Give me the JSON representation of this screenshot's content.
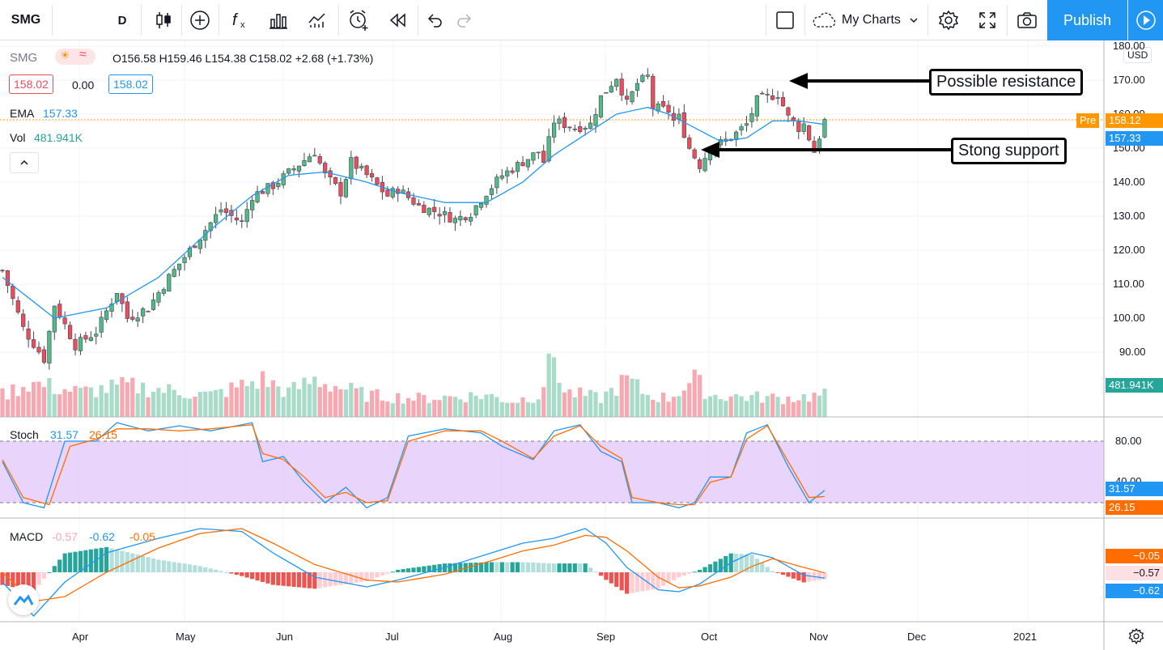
{
  "toolbar": {
    "symbol": "SMG",
    "interval": "D",
    "my_charts": "My Charts",
    "publish": "Publish"
  },
  "legend": {
    "symbol": "SMG",
    "ohlc": "O156.58 H159.46 L154.38 C158.02 +2.68 (+1.73%)",
    "bid": "158.02",
    "spread": "0.00",
    "ask": "158.02",
    "ema_label": "EMA",
    "ema_value": "157.33",
    "vol_label": "Vol",
    "vol_value": "481.941K"
  },
  "annotations": {
    "resistance": "Possible resistance",
    "support": "Stong support"
  },
  "price_axis": {
    "currency": "USD",
    "ticks": [
      "180.00",
      "170.00",
      "160.00",
      "150.00",
      "140.00",
      "130.00",
      "120.00",
      "110.00",
      "100.00",
      "90.00"
    ],
    "pre_label": "Pre",
    "pre_value": "158.12",
    "ema_tag": "157.33",
    "vol_tag": "481.941K"
  },
  "stoch": {
    "label": "Stoch",
    "k": "31.57",
    "d": "26.15",
    "ticks": [
      "80.00",
      "40.00"
    ],
    "k_tag": "31.57",
    "d_tag": "26.15"
  },
  "macd": {
    "label": "MACD",
    "hist": "-0.57",
    "macd": "-0.62",
    "signal": "-0.05",
    "tag_signal": "−0.05",
    "tag_hist": "−0.57",
    "tag_macd": "−0.62"
  },
  "time_axis": [
    "Apr",
    "May",
    "Jun",
    "Jul",
    "Aug",
    "Sep",
    "Oct",
    "Nov",
    "Dec",
    "2021"
  ],
  "colors": {
    "up": "#53b987",
    "down": "#eb4d5c",
    "ema": "#2196f3",
    "stoch_k": "#2196f3",
    "stoch_d": "#ff6d00",
    "accent": "#2196f3",
    "pre": "#ff9800"
  },
  "chart_data": {
    "type": "candlestick",
    "title": "SMG",
    "ylim": [
      80,
      180
    ],
    "price_path": [
      [
        0,
        114
      ],
      [
        4,
        97
      ],
      [
        8,
        88
      ],
      [
        10,
        104
      ],
      [
        14,
        92
      ],
      [
        18,
        96
      ],
      [
        22,
        108
      ],
      [
        24,
        100
      ],
      [
        28,
        103
      ],
      [
        32,
        112
      ],
      [
        35,
        118
      ],
      [
        38,
        124
      ],
      [
        42,
        132
      ],
      [
        46,
        128
      ],
      [
        48,
        136
      ],
      [
        52,
        139
      ],
      [
        56,
        144
      ],
      [
        60,
        149
      ],
      [
        62,
        142
      ],
      [
        65,
        137
      ],
      [
        67,
        146
      ],
      [
        70,
        142
      ],
      [
        74,
        136
      ],
      [
        76,
        138
      ],
      [
        80,
        133
      ],
      [
        84,
        131
      ],
      [
        87,
        129
      ],
      [
        90,
        131
      ],
      [
        93,
        137
      ],
      [
        96,
        142
      ],
      [
        100,
        146
      ],
      [
        103,
        149
      ],
      [
        104,
        146
      ],
      [
        106,
        158
      ],
      [
        110,
        156
      ],
      [
        113,
        157
      ],
      [
        115,
        165
      ],
      [
        118,
        171
      ],
      [
        120,
        163
      ],
      [
        122,
        169
      ],
      [
        124,
        171
      ],
      [
        125,
        162
      ],
      [
        128,
        161
      ],
      [
        129,
        158
      ],
      [
        130,
        159
      ],
      [
        132,
        150
      ],
      [
        134,
        145
      ],
      [
        136,
        150
      ],
      [
        140,
        153
      ],
      [
        143,
        157
      ],
      [
        145,
        164
      ],
      [
        149,
        166
      ],
      [
        151,
        159
      ],
      [
        153,
        156
      ],
      [
        154,
        157
      ],
      [
        156,
        149
      ],
      [
        158,
        158
      ]
    ],
    "volume_path": [
      [
        0,
        0.35
      ],
      [
        5,
        0.55
      ],
      [
        15,
        0.4
      ],
      [
        24,
        0.5
      ],
      [
        40,
        0.35
      ],
      [
        50,
        0.6
      ],
      [
        55,
        0.4
      ],
      [
        60,
        0.6
      ],
      [
        70,
        0.35
      ],
      [
        80,
        0.3
      ],
      [
        93,
        0.35
      ],
      [
        98,
        0.25
      ],
      [
        103,
        0.35
      ],
      [
        106,
        1.0
      ],
      [
        108,
        0.4
      ],
      [
        115,
        0.3
      ],
      [
        120,
        0.6
      ],
      [
        124,
        0.35
      ],
      [
        128,
        0.3
      ],
      [
        133,
        0.6
      ],
      [
        136,
        0.35
      ],
      [
        150,
        0.3
      ],
      [
        158,
        0.35
      ]
    ],
    "ema_path": [
      [
        0,
        112
      ],
      [
        10,
        100
      ],
      [
        20,
        103
      ],
      [
        30,
        112
      ],
      [
        40,
        126
      ],
      [
        48,
        136
      ],
      [
        55,
        142
      ],
      [
        62,
        143
      ],
      [
        70,
        140
      ],
      [
        76,
        137
      ],
      [
        85,
        134
      ],
      [
        93,
        134
      ],
      [
        100,
        140
      ],
      [
        106,
        148
      ],
      [
        112,
        154
      ],
      [
        118,
        160
      ],
      [
        124,
        162
      ],
      [
        128,
        160
      ],
      [
        133,
        156
      ],
      [
        138,
        152
      ],
      [
        143,
        153
      ],
      [
        148,
        158
      ],
      [
        153,
        158
      ],
      [
        158,
        157
      ]
    ],
    "stoch_k_path": [
      [
        0,
        60
      ],
      [
        4,
        20
      ],
      [
        8,
        15
      ],
      [
        12,
        80
      ],
      [
        18,
        80
      ],
      [
        22,
        98
      ],
      [
        28,
        90
      ],
      [
        34,
        95
      ],
      [
        40,
        90
      ],
      [
        48,
        98
      ],
      [
        50,
        60
      ],
      [
        54,
        65
      ],
      [
        58,
        40
      ],
      [
        62,
        20
      ],
      [
        66,
        35
      ],
      [
        70,
        15
      ],
      [
        74,
        25
      ],
      [
        78,
        85
      ],
      [
        85,
        92
      ],
      [
        92,
        88
      ],
      [
        96,
        75
      ],
      [
        102,
        62
      ],
      [
        106,
        90
      ],
      [
        111,
        96
      ],
      [
        115,
        70
      ],
      [
        119,
        60
      ],
      [
        121,
        20
      ],
      [
        126,
        20
      ],
      [
        130,
        15
      ],
      [
        133,
        20
      ],
      [
        136,
        45
      ],
      [
        140,
        45
      ],
      [
        143,
        88
      ],
      [
        147,
        96
      ],
      [
        151,
        55
      ],
      [
        155,
        20
      ],
      [
        158,
        32
      ]
    ],
    "stoch_d_path": [
      [
        0,
        62
      ],
      [
        4,
        25
      ],
      [
        9,
        18
      ],
      [
        13,
        75
      ],
      [
        18,
        82
      ],
      [
        22,
        92
      ],
      [
        28,
        92
      ],
      [
        34,
        90
      ],
      [
        40,
        92
      ],
      [
        48,
        96
      ],
      [
        50,
        68
      ],
      [
        54,
        62
      ],
      [
        58,
        45
      ],
      [
        62,
        25
      ],
      [
        66,
        30
      ],
      [
        70,
        20
      ],
      [
        74,
        22
      ],
      [
        78,
        80
      ],
      [
        85,
        90
      ],
      [
        92,
        90
      ],
      [
        96,
        80
      ],
      [
        102,
        63
      ],
      [
        106,
        85
      ],
      [
        111,
        95
      ],
      [
        115,
        75
      ],
      [
        119,
        63
      ],
      [
        121,
        25
      ],
      [
        126,
        20
      ],
      [
        130,
        18
      ],
      [
        133,
        18
      ],
      [
        136,
        40
      ],
      [
        140,
        45
      ],
      [
        143,
        82
      ],
      [
        147,
        95
      ],
      [
        151,
        60
      ],
      [
        155,
        25
      ],
      [
        158,
        26
      ]
    ],
    "macd_path": [
      [
        0,
        -1
      ],
      [
        6,
        -4.5
      ],
      [
        12,
        -1
      ],
      [
        20,
        2
      ],
      [
        30,
        3.5
      ],
      [
        38,
        4.5
      ],
      [
        46,
        4.2
      ],
      [
        52,
        2
      ],
      [
        60,
        -0.5
      ],
      [
        70,
        -1.5
      ],
      [
        76,
        -0.8
      ],
      [
        85,
        0.5
      ],
      [
        94,
        2
      ],
      [
        100,
        3
      ],
      [
        106,
        3.5
      ],
      [
        112,
        4.5
      ],
      [
        116,
        3
      ],
      [
        120,
        0.5
      ],
      [
        126,
        -1.8
      ],
      [
        130,
        -2
      ],
      [
        134,
        -1.2
      ],
      [
        140,
        1
      ],
      [
        144,
        2
      ],
      [
        148,
        1.5
      ],
      [
        154,
        -0.3
      ],
      [
        158,
        -0.6
      ]
    ],
    "signal_path": [
      [
        0,
        0
      ],
      [
        6,
        -3
      ],
      [
        12,
        -2.5
      ],
      [
        20,
        0
      ],
      [
        30,
        2.5
      ],
      [
        38,
        4
      ],
      [
        46,
        4.5
      ],
      [
        52,
        3
      ],
      [
        60,
        0.8
      ],
      [
        70,
        -0.8
      ],
      [
        76,
        -1
      ],
      [
        85,
        -0.2
      ],
      [
        94,
        1.2
      ],
      [
        100,
        2.2
      ],
      [
        106,
        2.8
      ],
      [
        112,
        3.8
      ],
      [
        116,
        3.6
      ],
      [
        120,
        2.2
      ],
      [
        126,
        -0.5
      ],
      [
        130,
        -1.6
      ],
      [
        134,
        -1.4
      ],
      [
        140,
        -0.5
      ],
      [
        144,
        0.6
      ],
      [
        148,
        1.4
      ],
      [
        154,
        0.5
      ],
      [
        158,
        -0.05
      ]
    ]
  }
}
